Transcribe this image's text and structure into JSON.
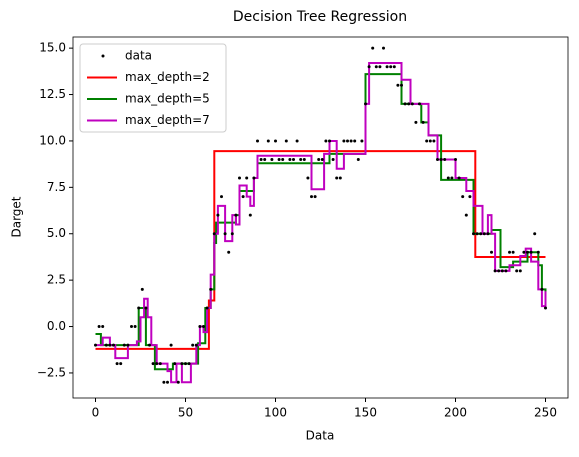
{
  "chart_data": {
    "type": "scatter_step",
    "title": "Decision Tree Regression",
    "x_label": "Data",
    "y_label": "Darget",
    "xlim": [
      -12.5,
      262.5
    ],
    "ylim": [
      -3.85,
      15.6
    ],
    "xticks": [
      0,
      50,
      100,
      150,
      200,
      250
    ],
    "yticks": [
      {
        "value": -2.5,
        "label": "−2.5"
      },
      {
        "value": 0,
        "label": "0.0"
      },
      {
        "value": 2.5,
        "label": "2.5"
      },
      {
        "value": 5,
        "label": "5.0"
      },
      {
        "value": 7.5,
        "label": "7.5"
      },
      {
        "value": 10,
        "label": "10.0"
      },
      {
        "value": 12.5,
        "label": "12.5"
      },
      {
        "value": 15,
        "label": "15.0"
      }
    ],
    "legend": "upper left",
    "scatter": {
      "name": "data",
      "color": "#000000",
      "x": [
        0,
        2,
        4,
        6,
        8,
        10,
        12,
        14,
        16,
        18,
        20,
        22,
        24,
        26,
        28,
        30,
        32,
        34,
        36,
        38,
        40,
        42,
        44,
        46,
        48,
        50,
        52,
        54,
        56,
        58,
        60,
        62,
        64,
        66,
        68,
        70,
        72,
        74,
        76,
        78,
        80,
        82,
        84,
        86,
        88,
        90,
        92,
        94,
        96,
        98,
        100,
        102,
        104,
        106,
        108,
        110,
        112,
        114,
        116,
        118,
        120,
        122,
        124,
        126,
        128,
        130,
        132,
        134,
        136,
        138,
        140,
        142,
        144,
        146,
        148,
        150,
        152,
        154,
        156,
        158,
        160,
        162,
        164,
        166,
        168,
        170,
        172,
        174,
        176,
        178,
        180,
        182,
        184,
        186,
        188,
        190,
        192,
        194,
        196,
        198,
        200,
        202,
        204,
        206,
        208,
        210,
        212,
        214,
        216,
        218,
        220,
        222,
        224,
        226,
        228,
        230,
        232,
        234,
        236,
        238,
        240,
        242,
        244,
        246,
        248,
        250
      ],
      "values": [
        -1,
        0,
        0,
        -1,
        -1,
        -1,
        -2,
        -2,
        -1,
        -1,
        0,
        0,
        1,
        2,
        1,
        -1,
        -2,
        -2,
        -2,
        -3,
        -3,
        -1,
        -2,
        -3,
        -2,
        -2,
        -2,
        -1,
        -1,
        0,
        0,
        1,
        2,
        5,
        6,
        7,
        5,
        4,
        5,
        6,
        8,
        7,
        8,
        6,
        8,
        10,
        9,
        9,
        10,
        9,
        10,
        9,
        9,
        10,
        9,
        9,
        10,
        9,
        9,
        8,
        7,
        7,
        9,
        9,
        10,
        10,
        9,
        8,
        8,
        10,
        10,
        10,
        10,
        9,
        10,
        12,
        14,
        15,
        14,
        14,
        15,
        14,
        14,
        14,
        13,
        13,
        12,
        12,
        12,
        11,
        12,
        11,
        10,
        10,
        10,
        9,
        9,
        9,
        8,
        8,
        9,
        8,
        7,
        6,
        7,
        5,
        5,
        5,
        5,
        5,
        4,
        3,
        3,
        3,
        3,
        4,
        4,
        3,
        3,
        4,
        4,
        4,
        5,
        4,
        2,
        1
      ]
    },
    "series": [
      {
        "name": "max_depth=2",
        "color": "#ff0000",
        "x": [
          0,
          63,
          66,
          211,
          250
        ],
        "values": [
          -1.2,
          1.4,
          9.45,
          3.75,
          3.75
        ]
      },
      {
        "name": "max_depth=5",
        "color": "#008000",
        "x": [
          0,
          3,
          24,
          28,
          33,
          43,
          57,
          61,
          64,
          66,
          67,
          78,
          80,
          88,
          90,
          120,
          130,
          150,
          170,
          181,
          185,
          192,
          200,
          210,
          220,
          225,
          232,
          240,
          246,
          248,
          250
        ],
        "values": [
          -0.4,
          -1.0,
          1.0,
          -1.0,
          -2.3,
          -2.0,
          -0.9,
          1.0,
          2.0,
          4.5,
          5.6,
          6.0,
          7.3,
          8.0,
          8.8,
          8.8,
          9.3,
          13.6,
          12.0,
          11.0,
          10.3,
          7.9,
          7.9,
          5.0,
          5.2,
          3.2,
          3.5,
          4.0,
          3.3,
          2.0,
          1.5
        ]
      },
      {
        "name": "max_depth=7",
        "color": "#bf00bf",
        "x": [
          0,
          4,
          8,
          11,
          18,
          23,
          25,
          27,
          29,
          31,
          34,
          40,
          42,
          45,
          48,
          53,
          56,
          58,
          60,
          62,
          64,
          66,
          68,
          72,
          76,
          78,
          80,
          84,
          86,
          88,
          90,
          120,
          127,
          130,
          134,
          138,
          150,
          152,
          170,
          175,
          185,
          190,
          200,
          206,
          210,
          215,
          218,
          220,
          222,
          230,
          236,
          239,
          242,
          246,
          248,
          250
        ],
        "values": [
          -1.0,
          -0.6,
          -1.0,
          -1.7,
          -1.0,
          -0.8,
          0.5,
          1.5,
          0.5,
          -1.0,
          -2.0,
          -2.4,
          -3.0,
          -2.0,
          -3.0,
          -2.0,
          -1.0,
          0.0,
          -0.3,
          1.0,
          2.8,
          5.0,
          6.5,
          4.6,
          6.0,
          5.5,
          7.6,
          7.0,
          6.5,
          8.0,
          9.2,
          7.4,
          9.3,
          10.0,
          8.5,
          9.3,
          12.0,
          14.2,
          13.3,
          12.0,
          10.3,
          9.0,
          8.0,
          7.3,
          6.5,
          5.0,
          6.0,
          5.0,
          3.0,
          3.3,
          3.8,
          4.2,
          3.5,
          2.0,
          1.1,
          1.9
        ]
      }
    ]
  }
}
